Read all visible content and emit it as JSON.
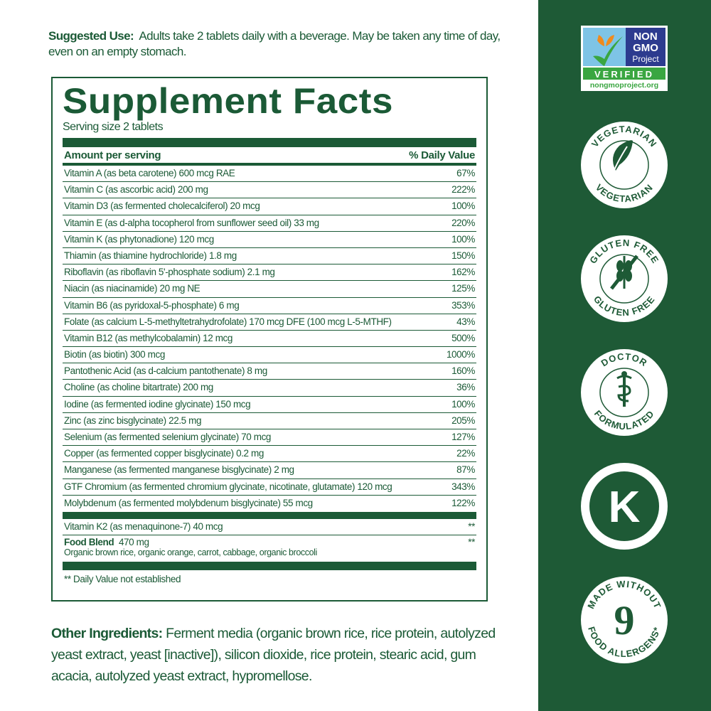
{
  "suggested_use": {
    "label": "Suggested Use:",
    "text": "Adults take 2 tablets daily with a beverage. May be taken any time of day, even on an empty stomach."
  },
  "facts": {
    "title": "Supplement Facts",
    "serving": "Serving size 2 tablets",
    "header_left": "Amount per serving",
    "header_right": "% Daily Value",
    "rows": [
      {
        "name": "Vitamin A (as beta carotene) 600 mcg RAE",
        "dv": "67%"
      },
      {
        "name": "Vitamin C (as ascorbic acid) 200 mg",
        "dv": "222%"
      },
      {
        "name": "Vitamin D3 (as fermented cholecalciferol) 20 mcg",
        "dv": "100%"
      },
      {
        "name": "Vitamin E (as d-alpha tocopherol from sunflower seed oil) 33 mg",
        "dv": "220%"
      },
      {
        "name": "Vitamin K (as phytonadione) 120 mcg",
        "dv": "100%"
      },
      {
        "name": "Thiamin (as thiamine hydrochloride) 1.8 mg",
        "dv": "150%"
      },
      {
        "name": "Riboflavin (as riboflavin 5'-phosphate sodium) 2.1 mg",
        "dv": "162%"
      },
      {
        "name": "Niacin (as niacinamide) 20 mg NE",
        "dv": "125%"
      },
      {
        "name": "Vitamin B6 (as pyridoxal-5-phosphate) 6 mg",
        "dv": "353%"
      },
      {
        "name": "Folate (as calcium L-5-methyltetrahydrofolate) 170 mcg DFE (100 mcg L-5-MTHF)",
        "dv": "43%"
      },
      {
        "name": "Vitamin B12 (as methylcobalamin) 12 mcg",
        "dv": "500%"
      },
      {
        "name": "Biotin (as biotin) 300 mcg",
        "dv": "1000%"
      },
      {
        "name": "Pantothenic Acid (as d-calcium pantothenate) 8 mg",
        "dv": "160%"
      },
      {
        "name": "Choline (as choline bitartrate) 200 mg",
        "dv": "36%"
      },
      {
        "name": "Iodine (as fermented iodine glycinate) 150 mcg",
        "dv": "100%"
      },
      {
        "name": "Zinc (as zinc bisglycinate) 22.5 mg",
        "dv": "205%"
      },
      {
        "name": "Selenium (as fermented selenium glycinate) 70 mcg",
        "dv": "127%"
      },
      {
        "name": "Copper (as fermented copper bisglycinate) 0.2 mg",
        "dv": "22%"
      },
      {
        "name": "Manganese (as fermented manganese bisglycinate) 2 mg",
        "dv": "87%"
      },
      {
        "name": "GTF Chromium (as fermented chromium glycinate, nicotinate, glutamate) 120 mcg",
        "dv": "343%"
      },
      {
        "name": "Molybdenum (as fermented molybdenum bisglycinate) 55 mcg",
        "dv": "122%"
      }
    ],
    "k2": {
      "name": "Vitamin K2 (as menaquinone-7) 40 mcg",
      "dv": "**"
    },
    "blend": {
      "name": "Food Blend",
      "amount": "470 mg",
      "dv": "**",
      "desc": "Organic brown rice, organic orange, carrot, cabbage, organic broccoli"
    },
    "footnote": "** Daily Value not established"
  },
  "other": {
    "label": "Other Ingredients:",
    "text": "Ferment media (organic brown rice, rice protein, autolyzed yeast extract, yeast [inactive]), silicon dioxide, rice protein, stearic acid, gum acacia, autolyzed yeast extract, hypromellose."
  },
  "badges": {
    "gmo": {
      "line1": "NON",
      "line2": "GMO",
      "line3": "Project",
      "verified": "VERIFIED",
      "url": "nongmoproject.org"
    },
    "vegetarian": "VEGETARIAN",
    "gluten": "GLUTEN FREE",
    "doctor_top": "DOCTOR",
    "doctor_bottom": "FORMULATED",
    "kosher": "K",
    "allergen_top": "MADE WITHOUT",
    "allergen_num": "9",
    "allergen_bottom": "FOOD ALLERGENS*"
  },
  "colors": {
    "brand_green": "#1b5a36",
    "panel_green": "#1e5a36"
  }
}
